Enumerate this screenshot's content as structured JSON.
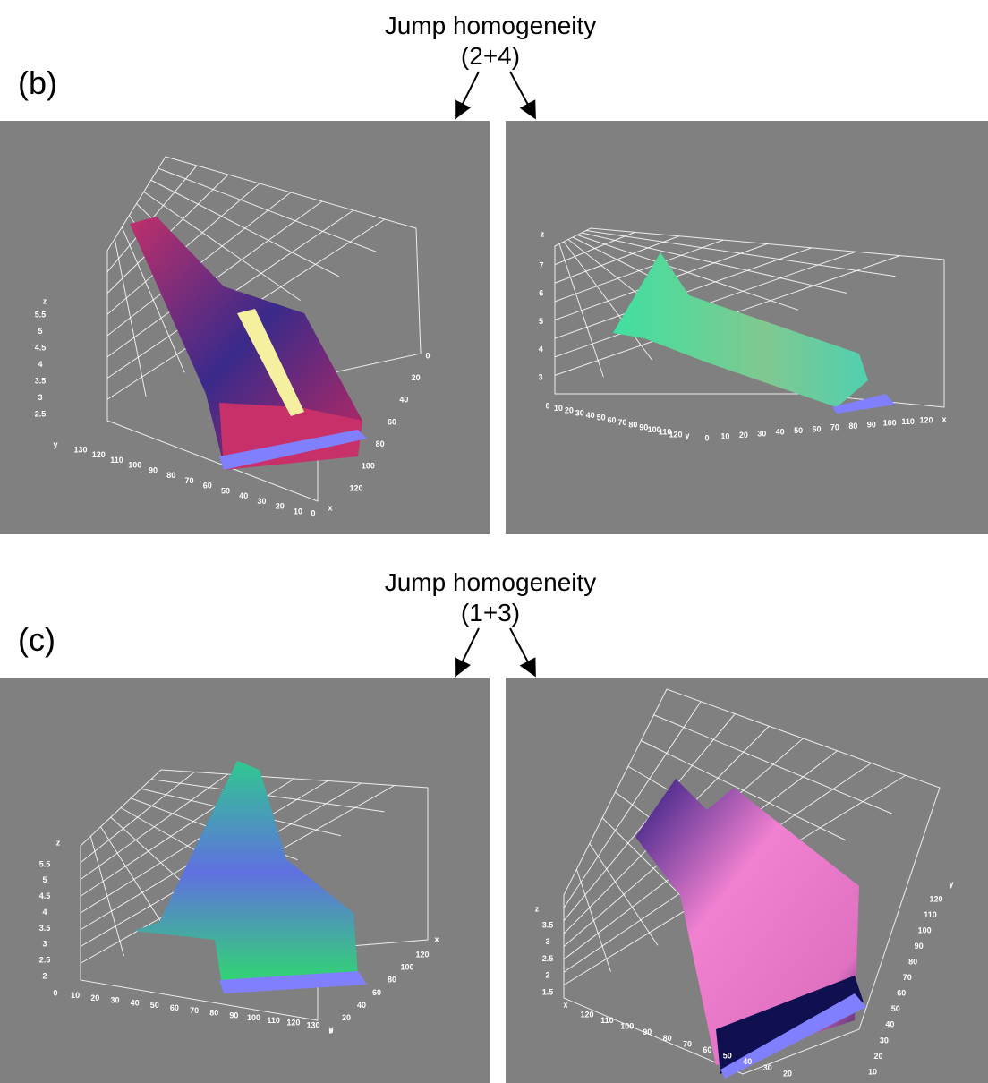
{
  "panels": [
    {
      "label": "(b)",
      "annotation": {
        "line1": "Jump homogeneity",
        "line2": "(2+4)"
      },
      "plots": [
        {
          "z_name": "z",
          "z_ticks": [
            "5.5",
            "5",
            "4.5",
            "4",
            "3.5",
            "3",
            "2.5"
          ],
          "bottom_name": "y",
          "bottom_ticks": [
            "130",
            "120",
            "110",
            "100",
            "90",
            "80",
            "70",
            "60",
            "50",
            "40",
            "30",
            "20",
            "10"
          ],
          "corner": "0",
          "side_name": "x",
          "side_ticks": [
            "0",
            "20",
            "40",
            "60",
            "80",
            "100",
            "120"
          ]
        },
        {
          "z_name": "z",
          "z_ticks": [
            "7",
            "6",
            "5",
            "4",
            "3"
          ],
          "bottom_name": "y",
          "bottom_ticks": [
            "0",
            "10",
            "20",
            "30",
            "40",
            "50",
            "60",
            "70",
            "80",
            "90",
            "100",
            "110",
            "120"
          ],
          "side_name": "x",
          "side_ticks": [
            "0",
            "10",
            "20",
            "30",
            "40",
            "50",
            "60",
            "70",
            "80",
            "90",
            "100",
            "110",
            "120"
          ]
        }
      ]
    },
    {
      "label": "(c)",
      "annotation": {
        "line1": "Jump homogeneity",
        "line2": "(1+3)"
      },
      "plots": [
        {
          "z_name": "z",
          "z_ticks": [
            "5.5",
            "5",
            "4.5",
            "4",
            "3.5",
            "3",
            "2.5",
            "2"
          ],
          "bottom_name": "y",
          "bottom_ticks": [
            "0",
            "10",
            "20",
            "30",
            "40",
            "50",
            "60",
            "70",
            "80",
            "90",
            "100",
            "110",
            "120",
            "130"
          ],
          "side_name": "x",
          "side_ticks": [
            "120",
            "100",
            "80",
            "60",
            "40",
            "20",
            "0"
          ]
        },
        {
          "z_name": "z",
          "z_ticks": [
            "3.5",
            "3",
            "2.5",
            "2",
            "1.5"
          ],
          "bottom_name": "x",
          "bottom_ticks": [
            "120",
            "110",
            "100",
            "90",
            "80",
            "70",
            "60",
            "50",
            "40",
            "30",
            "20"
          ],
          "side_name": "y",
          "side_ticks": [
            "120",
            "110",
            "100",
            "90",
            "80",
            "70",
            "60",
            "50",
            "40",
            "30",
            "20",
            "10"
          ]
        }
      ]
    }
  ]
}
